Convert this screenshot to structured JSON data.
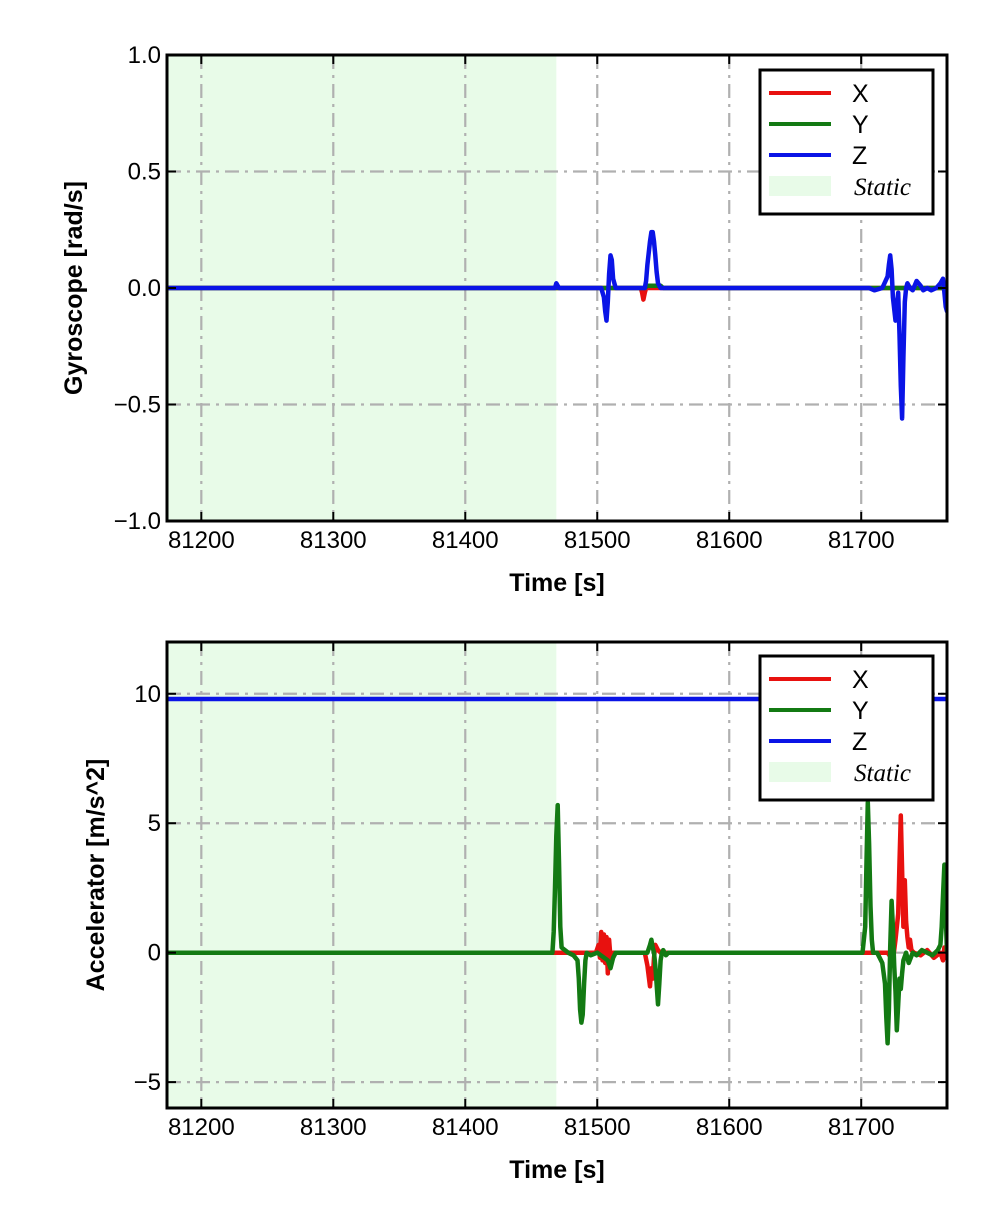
{
  "chart_data": [
    {
      "type": "line",
      "xlabel": "Time [s]",
      "ylabel": "Gyroscope [rad/s]",
      "xlim": [
        81174,
        81765
      ],
      "ylim": [
        -1.0,
        1.0
      ],
      "xticks": [
        81200,
        81300,
        81400,
        81500,
        81600,
        81700
      ],
      "xtick_labels": [
        "81200",
        "81300",
        "81400",
        "81500",
        "81600",
        "81700"
      ],
      "yticks": [
        1.0,
        0.5,
        0.0,
        -0.5,
        -1.0
      ],
      "ytick_labels": [
        "1.0",
        "0.5",
        "0.0",
        "−0.5",
        "−1.0"
      ],
      "grid": true,
      "legend_position": "top-right",
      "shaded_regions": [
        {
          "label": "Static",
          "x": [
            81174,
            81469
          ],
          "color": "#e8fbe8"
        }
      ],
      "legend": [
        "X",
        "Y",
        "Z",
        "Static"
      ],
      "series": [
        {
          "name": "X",
          "color": "#e8110f",
          "x": [
            81174,
            81533,
            81534,
            81535,
            81536,
            81537,
            81765
          ],
          "y": [
            0,
            0,
            -0.02,
            -0.05,
            -0.02,
            0,
            0
          ]
        },
        {
          "name": "Y",
          "color": "#137a13",
          "x": [
            81174,
            81536,
            81538,
            81548,
            81550,
            81765
          ],
          "y": [
            0,
            0,
            0.01,
            0.01,
            0,
            0
          ]
        },
        {
          "name": "Z",
          "color": "#0a14e6",
          "x": [
            81174,
            81468,
            81469,
            81470,
            81471,
            81503,
            81505,
            81506,
            81507,
            81508,
            81509,
            81510,
            81511,
            81512,
            81514,
            81536,
            81537,
            81538,
            81540,
            81541,
            81542,
            81543,
            81544,
            81545,
            81546,
            81548,
            81706,
            81710,
            81716,
            81720,
            81721,
            81722,
            81723,
            81724,
            81726,
            81727,
            81728,
            81729,
            81730,
            81731,
            81732,
            81733,
            81734,
            81735,
            81737,
            81739,
            81742,
            81745,
            81747,
            81750,
            81753,
            81757,
            81760,
            81762,
            81763,
            81764,
            81765
          ],
          "y": [
            0,
            0,
            0.02,
            0.01,
            0,
            0,
            -0.04,
            -0.1,
            -0.14,
            -0.06,
            0.06,
            0.14,
            0.12,
            0.04,
            0,
            0,
            0.03,
            0.1,
            0.2,
            0.24,
            0.24,
            0.2,
            0.14,
            0.07,
            0.02,
            0,
            0,
            -0.01,
            0,
            0.05,
            0.1,
            0.14,
            0.08,
            -0.04,
            -0.14,
            -0.08,
            -0.02,
            -0.2,
            -0.42,
            -0.56,
            -0.3,
            -0.06,
            0,
            0.02,
            0,
            -0.01,
            0.03,
            0.01,
            -0.01,
            0,
            -0.01,
            0,
            0.02,
            0.04,
            -0.02,
            -0.08,
            -0.1
          ]
        }
      ]
    },
    {
      "type": "line",
      "xlabel": "Time [s]",
      "ylabel": "Accelerator [m/s^2]",
      "xlim": [
        81174,
        81765
      ],
      "ylim": [
        -6.0,
        12.0
      ],
      "xticks": [
        81200,
        81300,
        81400,
        81500,
        81600,
        81700
      ],
      "xtick_labels": [
        "81200",
        "81300",
        "81400",
        "81500",
        "81600",
        "81700"
      ],
      "yticks": [
        10,
        5,
        0,
        -5
      ],
      "ytick_labels": [
        "10",
        "5",
        "0",
        "−5"
      ],
      "grid": true,
      "legend_position": "top-right",
      "shaded_regions": [
        {
          "label": "Static",
          "x": [
            81174,
            81469
          ],
          "color": "#e8fbe8"
        }
      ],
      "legend": [
        "X",
        "Y",
        "Z",
        "Static"
      ],
      "series": [
        {
          "name": "X",
          "color": "#e8110f",
          "x": [
            81174,
            81499,
            81501,
            81502,
            81503,
            81504,
            81505,
            81506,
            81507,
            81508,
            81509,
            81510,
            81512,
            81536,
            81538,
            81540,
            81541,
            81542,
            81543,
            81544,
            81546,
            81548,
            81700,
            81720,
            81724,
            81726,
            81728,
            81729,
            81730,
            81731,
            81732,
            81733,
            81734,
            81735,
            81736,
            81737,
            81738,
            81740,
            81745,
            81750,
            81755,
            81760,
            81762,
            81763,
            81764,
            81765
          ],
          "y": [
            0,
            0,
            0.3,
            -0.2,
            0.8,
            -0.3,
            0.7,
            -0.4,
            0.6,
            -0.8,
            0.5,
            -0.2,
            0,
            0,
            -0.5,
            -1.3,
            -0.6,
            -1.0,
            -0.2,
            0.3,
            0.1,
            0,
            0,
            0,
            -0.3,
            0.5,
            1.5,
            3.5,
            5.3,
            3.2,
            1.0,
            2.8,
            1.2,
            0.6,
            0.2,
            0.5,
            0.1,
            0,
            -0.1,
            0.1,
            -0.2,
            0,
            -0.3,
            0.2,
            -0.2,
            -0.1
          ]
        },
        {
          "name": "Y",
          "color": "#137a13",
          "x": [
            81174,
            81466,
            81467,
            81468,
            81469,
            81470,
            81471,
            81472,
            81473,
            81478,
            81482,
            81485,
            81486,
            81487,
            81488,
            81489,
            81490,
            81491,
            81492,
            81495,
            81500,
            81508,
            81510,
            81512,
            81514,
            81538,
            81540,
            81541,
            81542,
            81543,
            81544,
            81545,
            81546,
            81547,
            81548,
            81549,
            81550,
            81551,
            81552,
            81554,
            81701,
            81703,
            81704,
            81705,
            81706,
            81707,
            81708,
            81709,
            81710,
            81712,
            81716,
            81718,
            81719,
            81720,
            81721,
            81722,
            81723,
            81724,
            81725,
            81726,
            81727,
            81728,
            81729,
            81730,
            81731,
            81732,
            81734,
            81736,
            81739,
            81742,
            81746,
            81750,
            81754,
            81758,
            81760,
            81761,
            81762,
            81763,
            81764,
            81765
          ],
          "y": [
            0,
            0,
            0.8,
            2.5,
            4.5,
            5.7,
            3.5,
            1.0,
            0.2,
            0,
            -0.1,
            -0.3,
            -1.0,
            -2.2,
            -2.7,
            -2.4,
            -1.2,
            -0.3,
            0,
            -0.1,
            0,
            -0.3,
            -0.6,
            -0.2,
            0,
            0,
            0.3,
            0.5,
            0.2,
            0,
            -0.5,
            -1.2,
            -2.0,
            -1.2,
            -0.3,
            0,
            0.1,
            0,
            -0.1,
            0,
            0,
            1.0,
            3.5,
            5.8,
            4.2,
            1.8,
            0.5,
            0,
            0,
            0,
            -0.4,
            -1.2,
            -2.5,
            -3.5,
            -2.2,
            0.2,
            2.0,
            1.0,
            -0.5,
            -1.5,
            -3.0,
            -2.0,
            -1.0,
            -1.4,
            -0.8,
            -0.3,
            0,
            -0.4,
            0,
            -0.1,
            0.1,
            0,
            -0.1,
            0.1,
            0.3,
            1.0,
            2.2,
            3.4,
            1.5,
            0
          ]
        },
        {
          "name": "Z",
          "color": "#0a14e6",
          "x": [
            81174,
            81765
          ],
          "y": [
            9.8,
            9.8
          ]
        }
      ]
    }
  ]
}
